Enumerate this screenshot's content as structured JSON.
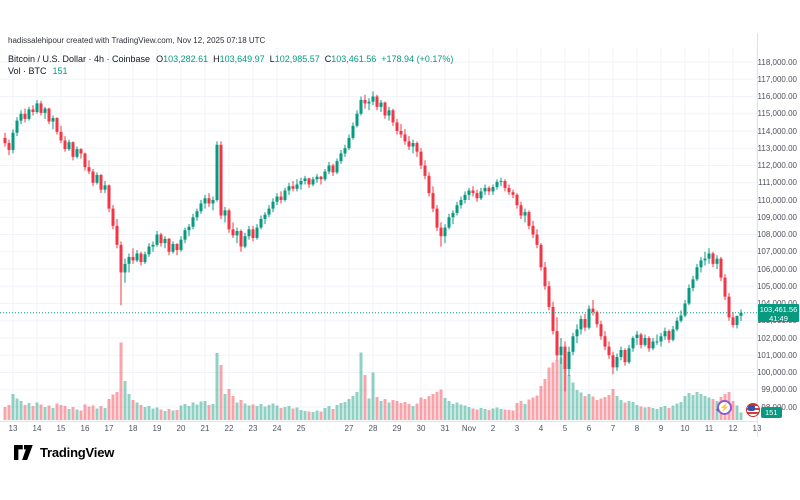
{
  "attribution": "hadissalehipour created with TradingView.com, Nov 12, 2025 07:18 UTC",
  "legend": {
    "title": "Bitcoin / U.S. Dollar · 4h · Coinbase",
    "o_label": "O",
    "o_value": "103,282.61",
    "h_label": "H",
    "h_value": "103,649.97",
    "l_label": "L",
    "l_value": "102,985.57",
    "c_label": "C",
    "c_value": "103,461.56",
    "change": "+178.94 (+0.17%)",
    "volume_label": "Vol · BTC",
    "volume_value": "151"
  },
  "price_tag": {
    "price": "103,461.56",
    "countdown": "41:49"
  },
  "volume_tag": "151",
  "footer_logo": "TradingView",
  "colors": {
    "up": "#089981",
    "down": "#F23645",
    "vol_up": "rgba(8,153,129,0.45)",
    "vol_down": "rgba(242,54,69,0.45)",
    "grid": "#f0f3fa",
    "axis_border": "#e0e3eb",
    "axis_text": "#50535e",
    "tag_bg": "#089981"
  },
  "chart_data": {
    "type": "candlestick+volume",
    "title": "Bitcoin / U.S. Dollar",
    "interval": "4h",
    "exchange": "Coinbase",
    "current_candle": {
      "open": 103282.61,
      "high": 103649.97,
      "low": 102985.57,
      "close": 103461.56,
      "change": 178.94,
      "change_pct": 0.17,
      "volume_btc": 151
    },
    "current_price": 103461.56,
    "countdown": "41:49",
    "price_axis": {
      "min": 98000,
      "max": 118000,
      "step": 1000
    },
    "ylim": [
      97200,
      118800
    ],
    "grid": true,
    "x_labels": [
      [
        "13",
        2
      ],
      [
        "14",
        8
      ],
      [
        "15",
        14
      ],
      [
        "16",
        20
      ],
      [
        "17",
        26
      ],
      [
        "18",
        32
      ],
      [
        "19",
        38
      ],
      [
        "20",
        44
      ],
      [
        "21",
        50
      ],
      [
        "22",
        56
      ],
      [
        "23",
        62
      ],
      [
        "24",
        68
      ],
      [
        "25",
        74
      ],
      [
        "27",
        86
      ],
      [
        "28",
        92
      ],
      [
        "29",
        98
      ],
      [
        "30",
        104
      ],
      [
        "31",
        110
      ],
      [
        "Nov",
        116
      ],
      [
        "2",
        122
      ],
      [
        "3",
        128
      ],
      [
        "4",
        134
      ],
      [
        "5",
        140
      ],
      [
        "6",
        146
      ],
      [
        "7",
        152
      ],
      [
        "8",
        158
      ],
      [
        "9",
        164
      ],
      [
        "10",
        170
      ],
      [
        "11",
        176
      ],
      [
        "12",
        182
      ],
      [
        "13",
        188
      ]
    ],
    "candles": [
      [
        113600,
        113900,
        113100,
        113300,
        260
      ],
      [
        113300,
        113500,
        112600,
        112900,
        300
      ],
      [
        112900,
        114100,
        112700,
        113900,
        520
      ],
      [
        113900,
        114800,
        113700,
        114600,
        430
      ],
      [
        114600,
        115200,
        114400,
        115000,
        380
      ],
      [
        115000,
        115300,
        114500,
        114700,
        300
      ],
      [
        114700,
        115400,
        114600,
        115250,
        340
      ],
      [
        115250,
        115500,
        114900,
        115100,
        280
      ],
      [
        115100,
        115800,
        115000,
        115600,
        350
      ],
      [
        115600,
        115750,
        114900,
        115050,
        310
      ],
      [
        115050,
        115400,
        114700,
        115300,
        260
      ],
      [
        115300,
        115350,
        114400,
        114550,
        290
      ],
      [
        114550,
        114900,
        114100,
        114750,
        240
      ],
      [
        114750,
        114800,
        113800,
        113950,
        330
      ],
      [
        113950,
        114300,
        113300,
        113450,
        300
      ],
      [
        113450,
        113700,
        112800,
        112950,
        280
      ],
      [
        112950,
        113500,
        112850,
        113350,
        220
      ],
      [
        113350,
        113400,
        112300,
        112500,
        260
      ],
      [
        112500,
        113100,
        112400,
        112950,
        210
      ],
      [
        112950,
        113000,
        112400,
        112700,
        190
      ],
      [
        112700,
        112750,
        111700,
        111900,
        310
      ],
      [
        111900,
        112300,
        111500,
        111650,
        270
      ],
      [
        111650,
        111800,
        110800,
        111000,
        290
      ],
      [
        111000,
        111600,
        110900,
        111450,
        230
      ],
      [
        111450,
        111500,
        110400,
        110600,
        280
      ],
      [
        110600,
        111100,
        110400,
        110850,
        240
      ],
      [
        110850,
        110900,
        109300,
        109500,
        420
      ],
      [
        109500,
        109700,
        108300,
        108500,
        510
      ],
      [
        108500,
        108900,
        107200,
        107400,
        560
      ],
      [
        107400,
        107600,
        103900,
        105800,
        1550
      ],
      [
        105800,
        106600,
        105200,
        106300,
        780
      ],
      [
        106300,
        106900,
        105800,
        106700,
        520
      ],
      [
        106700,
        107200,
        106300,
        106500,
        400
      ],
      [
        106500,
        107100,
        106400,
        106900,
        350
      ],
      [
        106900,
        107000,
        106200,
        106400,
        300
      ],
      [
        106400,
        107000,
        106300,
        106850,
        260
      ],
      [
        106850,
        107500,
        106700,
        107300,
        280
      ],
      [
        107300,
        107600,
        107000,
        107400,
        230
      ],
      [
        107400,
        108200,
        107300,
        108000,
        250
      ],
      [
        108000,
        108100,
        107300,
        107500,
        210
      ],
      [
        107500,
        107900,
        107200,
        107750,
        180
      ],
      [
        107750,
        107800,
        106800,
        107000,
        220
      ],
      [
        107000,
        107600,
        106900,
        107450,
        190
      ],
      [
        107450,
        107500,
        106800,
        107100,
        200
      ],
      [
        107100,
        107900,
        107000,
        107700,
        290
      ],
      [
        107700,
        108400,
        107500,
        108250,
        320
      ],
      [
        108250,
        108600,
        107900,
        108450,
        280
      ],
      [
        108450,
        109200,
        108300,
        109000,
        350
      ],
      [
        109000,
        109500,
        108800,
        109350,
        310
      ],
      [
        109350,
        110000,
        109200,
        109800,
        370
      ],
      [
        109800,
        110300,
        109500,
        110100,
        380
      ],
      [
        110100,
        110400,
        109600,
        109800,
        300
      ],
      [
        109800,
        110200,
        109400,
        110000,
        320
      ],
      [
        110000,
        113400,
        109900,
        113200,
        1340
      ],
      [
        113200,
        113400,
        108900,
        109100,
        1100
      ],
      [
        109100,
        109600,
        108700,
        109400,
        520
      ],
      [
        109400,
        109500,
        108100,
        108300,
        620
      ],
      [
        108300,
        108700,
        107800,
        107950,
        480
      ],
      [
        107950,
        108400,
        107500,
        108200,
        350
      ],
      [
        108200,
        108300,
        107000,
        107300,
        400
      ],
      [
        107300,
        108100,
        107200,
        107900,
        330
      ],
      [
        107900,
        108500,
        107700,
        108300,
        290
      ],
      [
        108300,
        108500,
        107600,
        107800,
        310
      ],
      [
        107800,
        108600,
        107700,
        108400,
        280
      ],
      [
        108400,
        109100,
        108300,
        108900,
        320
      ],
      [
        108900,
        109300,
        108600,
        109150,
        270
      ],
      [
        109150,
        109700,
        109000,
        109500,
        300
      ],
      [
        109500,
        110100,
        109300,
        109900,
        330
      ],
      [
        109900,
        110400,
        109700,
        110200,
        290
      ],
      [
        110200,
        110500,
        109800,
        110000,
        240
      ],
      [
        110000,
        110700,
        109900,
        110550,
        260
      ],
      [
        110550,
        111000,
        110300,
        110800,
        280
      ],
      [
        110800,
        111100,
        110500,
        110650,
        230
      ],
      [
        110650,
        111200,
        110500,
        110900,
        250
      ],
      [
        110900,
        111300,
        110600,
        111100,
        200
      ],
      [
        111100,
        111400,
        110900,
        111250,
        180
      ],
      [
        111250,
        111300,
        110700,
        110900,
        170
      ],
      [
        110900,
        111350,
        110800,
        111200,
        160
      ],
      [
        111200,
        111500,
        111000,
        111350,
        190
      ],
      [
        111350,
        111400,
        110900,
        111200,
        170
      ],
      [
        111200,
        111800,
        111100,
        111650,
        240
      ],
      [
        111650,
        112200,
        111500,
        112000,
        280
      ],
      [
        112000,
        112100,
        111400,
        111600,
        220
      ],
      [
        111600,
        112400,
        111500,
        112250,
        300
      ],
      [
        112250,
        112900,
        112100,
        112700,
        340
      ],
      [
        112700,
        113200,
        112500,
        113000,
        360
      ],
      [
        113000,
        113800,
        112900,
        113600,
        420
      ],
      [
        113600,
        114500,
        113500,
        114300,
        480
      ],
      [
        114300,
        115200,
        114200,
        115000,
        560
      ],
      [
        115000,
        116000,
        114900,
        115800,
        1350
      ],
      [
        115800,
        116100,
        115300,
        115600,
        900
      ],
      [
        115600,
        115900,
        115200,
        115700,
        430
      ],
      [
        115700,
        116300,
        115500,
        116000,
        950
      ],
      [
        116000,
        116100,
        115200,
        115400,
        460
      ],
      [
        115400,
        115800,
        115100,
        115650,
        380
      ],
      [
        115650,
        115700,
        114700,
        114900,
        420
      ],
      [
        114900,
        115400,
        114600,
        115200,
        350
      ],
      [
        115200,
        115300,
        114300,
        114500,
        400
      ],
      [
        114500,
        114700,
        113800,
        114000,
        380
      ],
      [
        114000,
        114400,
        113600,
        113800,
        340
      ],
      [
        113800,
        114100,
        113200,
        113400,
        360
      ],
      [
        113400,
        113700,
        112900,
        113100,
        320
      ],
      [
        113100,
        113500,
        112700,
        113300,
        280
      ],
      [
        113300,
        113400,
        112500,
        112800,
        330
      ],
      [
        112800,
        113000,
        111800,
        112000,
        450
      ],
      [
        112000,
        112300,
        111200,
        111400,
        420
      ],
      [
        111400,
        111600,
        110200,
        110400,
        480
      ],
      [
        110400,
        110800,
        109300,
        109500,
        520
      ],
      [
        109500,
        109700,
        108200,
        108400,
        560
      ],
      [
        108400,
        108700,
        107300,
        107900,
        610
      ],
      [
        107900,
        108600,
        107500,
        108400,
        440
      ],
      [
        108400,
        109200,
        108300,
        109000,
        380
      ],
      [
        109000,
        109400,
        108600,
        109250,
        320
      ],
      [
        109250,
        109900,
        109100,
        109700,
        350
      ],
      [
        109700,
        110200,
        109500,
        110000,
        310
      ],
      [
        110000,
        110500,
        109800,
        110300,
        290
      ],
      [
        110300,
        110700,
        110000,
        110550,
        260
      ],
      [
        110550,
        110800,
        110200,
        110400,
        230
      ],
      [
        110400,
        110600,
        109900,
        110100,
        210
      ],
      [
        110100,
        110700,
        110000,
        110500,
        240
      ],
      [
        110500,
        110900,
        110300,
        110700,
        220
      ],
      [
        110700,
        110800,
        110300,
        110500,
        200
      ],
      [
        110500,
        110900,
        110300,
        110750,
        230
      ],
      [
        110750,
        111200,
        110600,
        111050,
        250
      ],
      [
        111050,
        111300,
        110800,
        111100,
        220
      ],
      [
        111100,
        111200,
        110500,
        110700,
        210
      ],
      [
        110700,
        110900,
        110300,
        110450,
        200
      ],
      [
        110450,
        110600,
        110100,
        110300,
        190
      ],
      [
        110300,
        110400,
        109500,
        109700,
        340
      ],
      [
        109700,
        109900,
        108900,
        109100,
        380
      ],
      [
        109100,
        109500,
        108700,
        109300,
        320
      ],
      [
        109300,
        109400,
        108300,
        108500,
        410
      ],
      [
        108500,
        108800,
        107800,
        108000,
        450
      ],
      [
        108000,
        108300,
        107200,
        107400,
        490
      ],
      [
        107400,
        107500,
        105900,
        106100,
        680
      ],
      [
        106100,
        106400,
        104800,
        105000,
        820
      ],
      [
        105000,
        105300,
        103600,
        103800,
        1050
      ],
      [
        103800,
        104100,
        102200,
        102400,
        1150
      ],
      [
        102400,
        103200,
        100700,
        101000,
        1200
      ],
      [
        101000,
        102000,
        100500,
        101500,
        1250
      ],
      [
        101500,
        101800,
        98900,
        100200,
        1150
      ],
      [
        100200,
        101500,
        99800,
        101200,
        900
      ],
      [
        101200,
        102300,
        101000,
        102100,
        750
      ],
      [
        102100,
        102800,
        101700,
        102500,
        600
      ],
      [
        102500,
        103300,
        102200,
        103100,
        550
      ],
      [
        103100,
        103400,
        102400,
        102600,
        480
      ],
      [
        102600,
        103900,
        102500,
        103700,
        520
      ],
      [
        103700,
        104200,
        103300,
        103500,
        470
      ],
      [
        103500,
        103600,
        102600,
        102800,
        400
      ],
      [
        102800,
        103000,
        101900,
        102100,
        430
      ],
      [
        102100,
        102400,
        101300,
        101500,
        460
      ],
      [
        101500,
        101800,
        100800,
        101000,
        500
      ],
      [
        101000,
        101200,
        99900,
        100300,
        620
      ],
      [
        100300,
        101100,
        100100,
        100900,
        480
      ],
      [
        100900,
        101500,
        100700,
        101300,
        400
      ],
      [
        101300,
        101400,
        100400,
        100600,
        350
      ],
      [
        100600,
        101600,
        100500,
        101400,
        380
      ],
      [
        101400,
        102100,
        101200,
        102000,
        360
      ],
      [
        102000,
        102400,
        101600,
        102200,
        300
      ],
      [
        102200,
        102300,
        101400,
        101600,
        270
      ],
      [
        101600,
        102200,
        101500,
        102000,
        250
      ],
      [
        102000,
        102100,
        101200,
        101400,
        260
      ],
      [
        101400,
        102000,
        101300,
        101800,
        240
      ],
      [
        101800,
        102200,
        101600,
        101800,
        220
      ],
      [
        101800,
        102300,
        101500,
        102100,
        260
      ],
      [
        102100,
        102600,
        101900,
        102400,
        280
      ],
      [
        102400,
        102500,
        101700,
        101900,
        240
      ],
      [
        101900,
        102700,
        101800,
        102500,
        290
      ],
      [
        102500,
        103200,
        102400,
        103000,
        330
      ],
      [
        103000,
        103600,
        102900,
        103300,
        360
      ],
      [
        103300,
        104200,
        103200,
        104000,
        480
      ],
      [
        104000,
        105100,
        103900,
        104900,
        540
      ],
      [
        104900,
        105600,
        104700,
        105400,
        500
      ],
      [
        105400,
        106300,
        105300,
        106100,
        560
      ],
      [
        106100,
        106700,
        105800,
        106500,
        520
      ],
      [
        106500,
        107000,
        106200,
        106600,
        480
      ],
      [
        106600,
        107200,
        106300,
        106900,
        450
      ],
      [
        106900,
        107000,
        106100,
        106300,
        420
      ],
      [
        106300,
        106800,
        106000,
        106600,
        380
      ],
      [
        106600,
        106700,
        105300,
        105500,
        460
      ],
      [
        105500,
        105700,
        104200,
        104400,
        520
      ],
      [
        104400,
        104600,
        103000,
        103200,
        560
      ],
      [
        103200,
        103500,
        102600,
        102750,
        380
      ],
      [
        102750,
        103300,
        102550,
        103283,
        290
      ],
      [
        103282.61,
        103649.97,
        102985.57,
        103461.56,
        151
      ]
    ]
  }
}
